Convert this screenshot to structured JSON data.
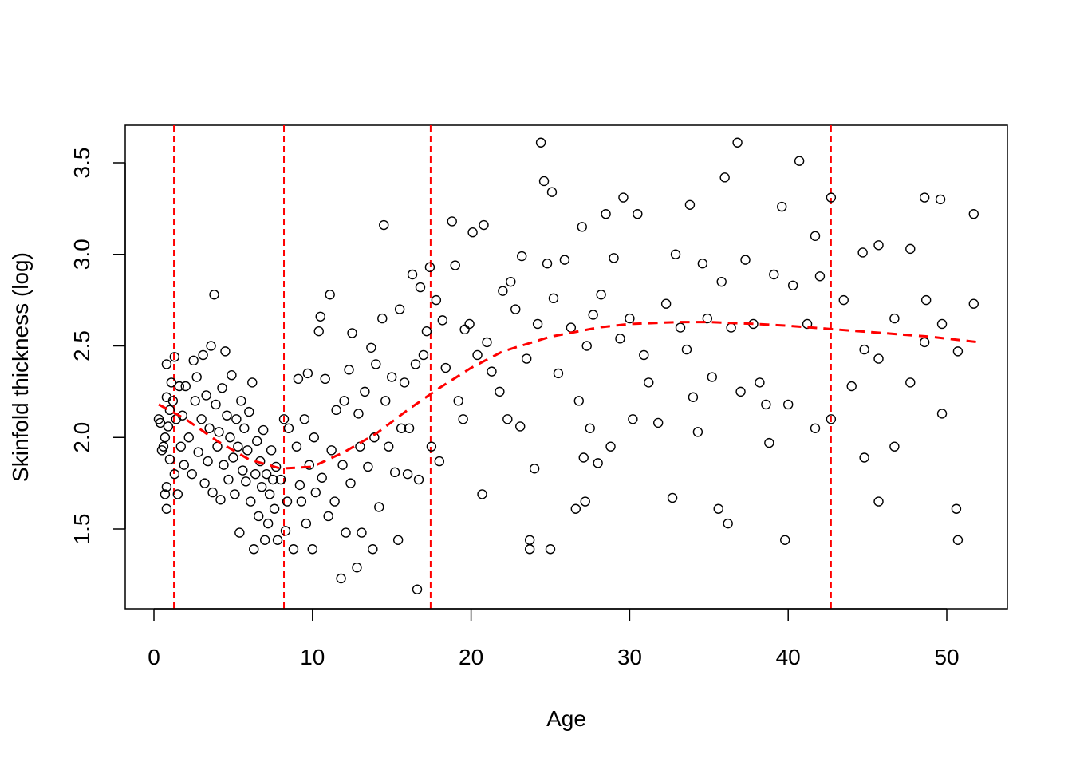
{
  "chart_data": {
    "type": "scatter",
    "title": "",
    "xlabel": "Age",
    "ylabel": "Skinfold thickness (log)",
    "xlim": [
      -1.8,
      53.8
    ],
    "ylim": [
      1.07,
      3.7
    ],
    "xticks": [
      0,
      10,
      20,
      30,
      40,
      50
    ],
    "yticks": [
      1.5,
      2.0,
      2.5,
      3.0,
      3.5
    ],
    "xtick_labels": [
      "0",
      "10",
      "20",
      "30",
      "40",
      "50"
    ],
    "ytick_labels": [
      "1.5",
      "2.0",
      "2.5",
      "3.0",
      "3.5"
    ],
    "grid": false,
    "legend": "none",
    "point_color": "#000000",
    "line_color": "#ff0000",
    "knots": [
      1.26,
      8.2,
      17.45,
      42.7
    ],
    "fit_curve": {
      "x": [
        0.3,
        2,
        4,
        6,
        8,
        10,
        12,
        14,
        16,
        18,
        20,
        22,
        25,
        28,
        30,
        33,
        35,
        38,
        40,
        43,
        46,
        49,
        52
      ],
      "y": [
        2.18,
        2.1,
        1.98,
        1.88,
        1.83,
        1.84,
        1.92,
        2.02,
        2.15,
        2.27,
        2.38,
        2.47,
        2.55,
        2.6,
        2.62,
        2.63,
        2.63,
        2.62,
        2.61,
        2.59,
        2.57,
        2.55,
        2.52
      ]
    },
    "points": [
      [
        0.3,
        2.1
      ],
      [
        0.4,
        2.08
      ],
      [
        0.5,
        1.93
      ],
      [
        0.6,
        1.95
      ],
      [
        0.7,
        2.0
      ],
      [
        0.8,
        2.22
      ],
      [
        0.8,
        2.4
      ],
      [
        0.8,
        1.73
      ],
      [
        0.8,
        1.61
      ],
      [
        0.7,
        1.69
      ],
      [
        0.9,
        2.06
      ],
      [
        1.0,
        2.15
      ],
      [
        1.0,
        1.88
      ],
      [
        1.1,
        2.3
      ],
      [
        1.2,
        2.2
      ],
      [
        1.3,
        1.8
      ],
      [
        1.3,
        2.44
      ],
      [
        1.4,
        2.1
      ],
      [
        1.5,
        1.69
      ],
      [
        1.6,
        2.28
      ],
      [
        1.7,
        1.95
      ],
      [
        1.8,
        2.12
      ],
      [
        1.9,
        1.85
      ],
      [
        2.0,
        2.28
      ],
      [
        2.2,
        2.0
      ],
      [
        2.4,
        1.8
      ],
      [
        2.5,
        2.42
      ],
      [
        2.6,
        2.2
      ],
      [
        2.7,
        2.33
      ],
      [
        2.8,
        1.92
      ],
      [
        3.0,
        2.1
      ],
      [
        3.1,
        2.45
      ],
      [
        3.2,
        1.75
      ],
      [
        3.3,
        2.23
      ],
      [
        3.4,
        1.87
      ],
      [
        3.5,
        2.05
      ],
      [
        3.6,
        2.5
      ],
      [
        3.7,
        1.7
      ],
      [
        3.8,
        2.78
      ],
      [
        3.9,
        2.18
      ],
      [
        4.0,
        1.95
      ],
      [
        4.1,
        2.03
      ],
      [
        4.2,
        1.66
      ],
      [
        4.3,
        2.27
      ],
      [
        4.4,
        1.85
      ],
      [
        4.5,
        2.47
      ],
      [
        4.6,
        2.12
      ],
      [
        4.7,
        1.77
      ],
      [
        4.8,
        2.0
      ],
      [
        4.9,
        2.34
      ],
      [
        5.0,
        1.89
      ],
      [
        5.1,
        1.69
      ],
      [
        5.2,
        2.1
      ],
      [
        5.3,
        1.95
      ],
      [
        5.4,
        1.48
      ],
      [
        5.5,
        2.2
      ],
      [
        5.6,
        1.82
      ],
      [
        5.7,
        2.05
      ],
      [
        5.8,
        1.76
      ],
      [
        5.9,
        1.93
      ],
      [
        6.0,
        2.14
      ],
      [
        6.1,
        1.65
      ],
      [
        6.2,
        2.3
      ],
      [
        6.3,
        1.39
      ],
      [
        6.4,
        1.8
      ],
      [
        6.5,
        1.98
      ],
      [
        6.6,
        1.57
      ],
      [
        6.7,
        1.87
      ],
      [
        6.8,
        1.73
      ],
      [
        6.9,
        2.04
      ],
      [
        7.0,
        1.44
      ],
      [
        7.1,
        1.8
      ],
      [
        7.2,
        1.53
      ],
      [
        7.3,
        1.69
      ],
      [
        7.4,
        1.93
      ],
      [
        7.5,
        1.77
      ],
      [
        7.6,
        1.61
      ],
      [
        7.7,
        1.84
      ],
      [
        7.8,
        1.44
      ],
      [
        8.0,
        1.77
      ],
      [
        8.2,
        2.1
      ],
      [
        8.3,
        1.49
      ],
      [
        8.4,
        1.65
      ],
      [
        8.5,
        2.05
      ],
      [
        8.8,
        1.39
      ],
      [
        9.0,
        1.95
      ],
      [
        9.1,
        2.32
      ],
      [
        9.2,
        1.74
      ],
      [
        9.3,
        1.65
      ],
      [
        9.5,
        2.1
      ],
      [
        9.6,
        1.53
      ],
      [
        9.7,
        2.35
      ],
      [
        9.8,
        1.85
      ],
      [
        10.0,
        1.39
      ],
      [
        10.1,
        2.0
      ],
      [
        10.2,
        1.7
      ],
      [
        10.4,
        2.58
      ],
      [
        10.5,
        2.66
      ],
      [
        10.6,
        1.78
      ],
      [
        10.8,
        2.32
      ],
      [
        11.0,
        1.57
      ],
      [
        11.1,
        2.78
      ],
      [
        11.2,
        1.93
      ],
      [
        11.4,
        1.65
      ],
      [
        11.5,
        2.15
      ],
      [
        11.8,
        1.23
      ],
      [
        11.9,
        1.85
      ],
      [
        12.0,
        2.2
      ],
      [
        12.1,
        1.48
      ],
      [
        12.3,
        2.37
      ],
      [
        12.4,
        1.75
      ],
      [
        12.5,
        2.57
      ],
      [
        12.8,
        1.29
      ],
      [
        12.9,
        2.13
      ],
      [
        13.0,
        1.95
      ],
      [
        13.1,
        1.48
      ],
      [
        13.3,
        2.25
      ],
      [
        13.5,
        1.84
      ],
      [
        13.7,
        2.49
      ],
      [
        13.8,
        1.39
      ],
      [
        13.9,
        2.0
      ],
      [
        14.0,
        2.4
      ],
      [
        14.2,
        1.62
      ],
      [
        14.4,
        2.65
      ],
      [
        14.5,
        3.16
      ],
      [
        14.6,
        2.2
      ],
      [
        14.8,
        1.95
      ],
      [
        15.0,
        2.33
      ],
      [
        15.2,
        1.81
      ],
      [
        15.4,
        1.44
      ],
      [
        15.5,
        2.7
      ],
      [
        15.6,
        2.05
      ],
      [
        15.8,
        2.3
      ],
      [
        16.0,
        1.8
      ],
      [
        16.1,
        2.05
      ],
      [
        16.3,
        2.89
      ],
      [
        16.5,
        2.4
      ],
      [
        16.6,
        1.17
      ],
      [
        16.7,
        1.77
      ],
      [
        16.8,
        2.82
      ],
      [
        17.0,
        2.45
      ],
      [
        17.2,
        2.58
      ],
      [
        17.4,
        2.93
      ],
      [
        17.5,
        1.95
      ],
      [
        17.8,
        2.75
      ],
      [
        18.0,
        1.87
      ],
      [
        18.2,
        2.64
      ],
      [
        18.4,
        2.38
      ],
      [
        18.8,
        3.18
      ],
      [
        19.0,
        2.94
      ],
      [
        19.2,
        2.2
      ],
      [
        19.5,
        2.1
      ],
      [
        19.6,
        2.59
      ],
      [
        19.9,
        2.62
      ],
      [
        20.1,
        3.12
      ],
      [
        20.4,
        2.45
      ],
      [
        20.7,
        1.69
      ],
      [
        20.8,
        3.16
      ],
      [
        21.0,
        2.52
      ],
      [
        21.3,
        2.36
      ],
      [
        21.8,
        2.25
      ],
      [
        22.0,
        2.8
      ],
      [
        22.3,
        2.1
      ],
      [
        22.5,
        2.85
      ],
      [
        22.8,
        2.7
      ],
      [
        23.1,
        2.06
      ],
      [
        23.2,
        2.99
      ],
      [
        23.5,
        2.43
      ],
      [
        23.7,
        1.44
      ],
      [
        23.7,
        1.39
      ],
      [
        24.0,
        1.83
      ],
      [
        24.2,
        2.62
      ],
      [
        24.4,
        3.61
      ],
      [
        24.6,
        3.4
      ],
      [
        24.8,
        2.95
      ],
      [
        25.0,
        1.39
      ],
      [
        25.1,
        3.34
      ],
      [
        25.2,
        2.76
      ],
      [
        25.5,
        2.35
      ],
      [
        25.9,
        2.97
      ],
      [
        26.3,
        2.6
      ],
      [
        26.6,
        1.61
      ],
      [
        26.8,
        2.2
      ],
      [
        27.0,
        3.15
      ],
      [
        27.1,
        1.89
      ],
      [
        27.2,
        1.65
      ],
      [
        27.3,
        2.5
      ],
      [
        27.5,
        2.05
      ],
      [
        27.7,
        2.67
      ],
      [
        28.0,
        1.86
      ],
      [
        28.2,
        2.78
      ],
      [
        28.5,
        3.22
      ],
      [
        28.8,
        1.95
      ],
      [
        29.0,
        2.98
      ],
      [
        29.4,
        2.54
      ],
      [
        29.6,
        3.31
      ],
      [
        30.0,
        2.65
      ],
      [
        30.2,
        2.1
      ],
      [
        30.5,
        3.22
      ],
      [
        30.9,
        2.45
      ],
      [
        31.2,
        2.3
      ],
      [
        31.8,
        2.08
      ],
      [
        32.3,
        2.73
      ],
      [
        32.7,
        1.67
      ],
      [
        32.9,
        3.0
      ],
      [
        33.2,
        2.6
      ],
      [
        33.6,
        2.48
      ],
      [
        33.8,
        3.27
      ],
      [
        34.0,
        2.22
      ],
      [
        34.3,
        2.03
      ],
      [
        34.6,
        2.95
      ],
      [
        34.9,
        2.65
      ],
      [
        35.2,
        2.33
      ],
      [
        35.6,
        1.61
      ],
      [
        35.8,
        2.85
      ],
      [
        36.0,
        3.42
      ],
      [
        36.2,
        1.53
      ],
      [
        36.4,
        2.6
      ],
      [
        36.8,
        3.61
      ],
      [
        37.0,
        2.25
      ],
      [
        37.3,
        2.97
      ],
      [
        37.8,
        2.62
      ],
      [
        38.2,
        2.3
      ],
      [
        38.6,
        2.18
      ],
      [
        38.8,
        1.97
      ],
      [
        39.1,
        2.89
      ],
      [
        39.6,
        3.26
      ],
      [
        39.8,
        1.44
      ],
      [
        40.0,
        2.18
      ],
      [
        40.3,
        2.83
      ],
      [
        40.7,
        3.51
      ],
      [
        41.2,
        2.62
      ],
      [
        41.7,
        2.05
      ],
      [
        41.7,
        3.1
      ],
      [
        42.0,
        2.88
      ],
      [
        42.7,
        3.31
      ],
      [
        42.7,
        2.1
      ],
      [
        43.5,
        2.75
      ],
      [
        44.0,
        2.28
      ],
      [
        44.7,
        3.01
      ],
      [
        44.8,
        1.89
      ],
      [
        44.8,
        2.48
      ],
      [
        45.7,
        1.65
      ],
      [
        45.7,
        3.05
      ],
      [
        45.7,
        2.43
      ],
      [
        46.7,
        1.95
      ],
      [
        46.7,
        2.65
      ],
      [
        47.7,
        3.03
      ],
      [
        47.7,
        2.3
      ],
      [
        48.6,
        3.31
      ],
      [
        48.6,
        2.52
      ],
      [
        48.7,
        2.75
      ],
      [
        49.6,
        3.3
      ],
      [
        49.7,
        2.62
      ],
      [
        49.7,
        2.13
      ],
      [
        50.6,
        1.61
      ],
      [
        50.7,
        1.44
      ],
      [
        50.7,
        2.47
      ],
      [
        51.7,
        3.22
      ],
      [
        51.7,
        2.73
      ]
    ]
  }
}
